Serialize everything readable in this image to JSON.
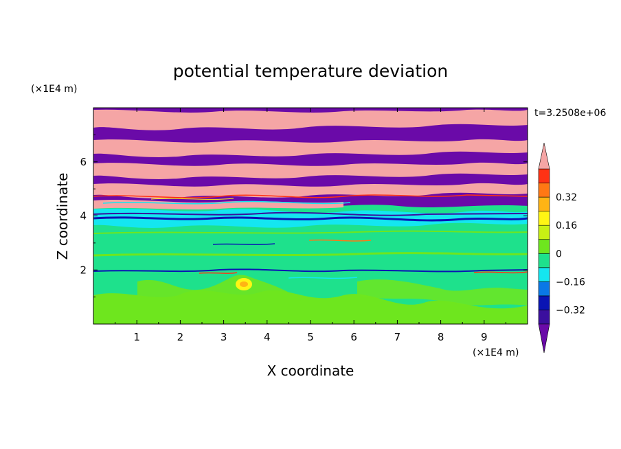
{
  "chart_data": {
    "type": "heatmap",
    "title": "potential temperature deviation",
    "xlabel": "X coordinate",
    "ylabel": "Z coordinate",
    "x_unit": "(×1E4 m)",
    "y_unit": "(×1E4 m)",
    "time_label": "t=3.2508e+06",
    "xlim": [
      0,
      10
    ],
    "ylim": [
      0,
      8
    ],
    "x_ticks": [
      "1",
      "2",
      "3",
      "4",
      "5",
      "6",
      "7",
      "8",
      "9"
    ],
    "y_ticks": [
      "2",
      "4",
      "6"
    ],
    "colorbar": {
      "levels": [
        -0.48,
        -0.4,
        -0.32,
        -0.24,
        -0.16,
        -0.08,
        0,
        0.08,
        0.16,
        0.24,
        0.32,
        0.4,
        0.48
      ],
      "labels": [
        "0.32",
        "0.16",
        "0",
        "−0.16",
        "−0.32"
      ],
      "colors": [
        "#6a0aa8",
        "#3b0f9e",
        "#0a14b4",
        "#0a78e6",
        "#14e6f0",
        "#1ee18c",
        "#6ee61e",
        "#c8f014",
        "#fff514",
        "#ffb414",
        "#ff7814",
        "#ff3214",
        "#f5a5a5"
      ],
      "extend": "both"
    },
    "bands": [
      {
        "z_range": [
          0,
          2.0
        ],
        "dominant": "green / light-green mix (~0 to +0.08)"
      },
      {
        "z_range": [
          2.0,
          4.0
        ],
        "dominant": "green (~0), thin blue and red streaks"
      },
      {
        "z_range": [
          4.0,
          4.8
        ],
        "dominant": "mixed, cyan/blue/red filaments"
      },
      {
        "z_range": [
          4.8,
          8.0
        ],
        "dominant": "alternating purple (<-0.48) and pink (>0.48) layers"
      }
    ]
  }
}
